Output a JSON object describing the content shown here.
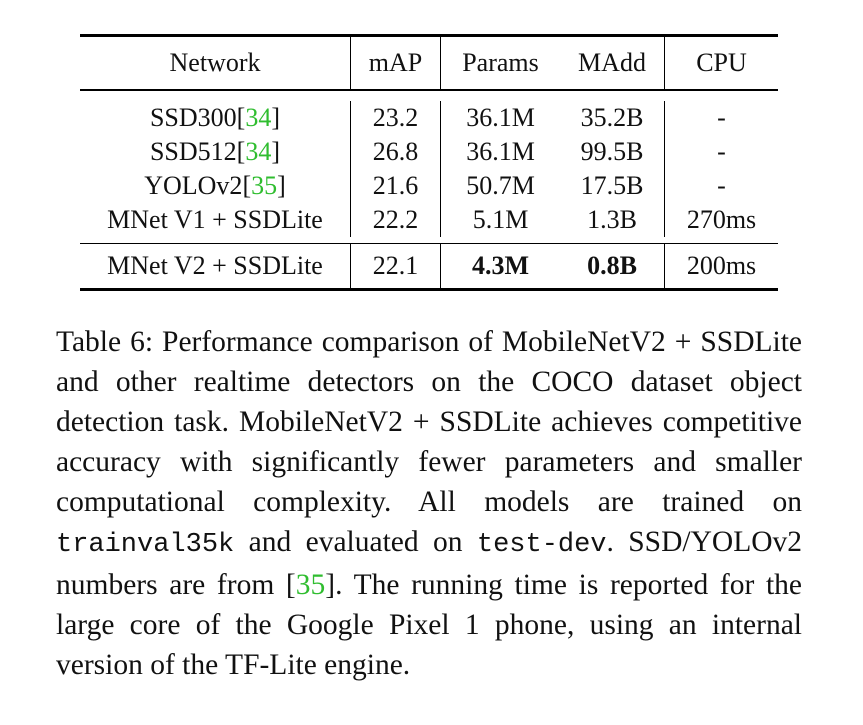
{
  "table": {
    "headers": [
      "Network",
      "mAP",
      "Params",
      "MAdd",
      "CPU"
    ],
    "rows": [
      {
        "network": "SSD300",
        "ref": "34",
        "map": "23.2",
        "params": "36.1M",
        "madd": "35.2B",
        "cpu": "-"
      },
      {
        "network": "SSD512",
        "ref": "34",
        "map": "26.8",
        "params": "36.1M",
        "madd": "99.5B",
        "cpu": "-"
      },
      {
        "network": "YOLOv2",
        "ref": "35",
        "map": "21.6",
        "params": "50.7M",
        "madd": "17.5B",
        "cpu": "-"
      },
      {
        "network": "MNet V1 + SSDLite",
        "ref": "",
        "map": "22.2",
        "params": "5.1M",
        "madd": "1.3B",
        "cpu": "270ms"
      }
    ],
    "final_row": {
      "network": "MNet V2 + SSDLite",
      "map": "22.1",
      "params": "4.3M",
      "madd": "0.8B",
      "cpu": "200ms"
    }
  },
  "caption": {
    "label": "Table 6:",
    "text_1": "Performance comparison of MobileNetV2 + SSDLite and other realtime detectors on the COCO dataset object detection task. MobileNetV2 + SSDLite achieves competitive accuracy with significantly fewer parameters and smaller computational complexity. All models are trained on",
    "code_1": "trainval35k",
    "text_2": "and evaluated on",
    "code_2": "test-dev",
    "text_3": ". SSD/YOLOv2 numbers are from [",
    "ref": "35",
    "text_4": "]. The running time is reported for the large core of the Google Pixel 1 phone, using an internal version of the TF-Lite engine."
  }
}
